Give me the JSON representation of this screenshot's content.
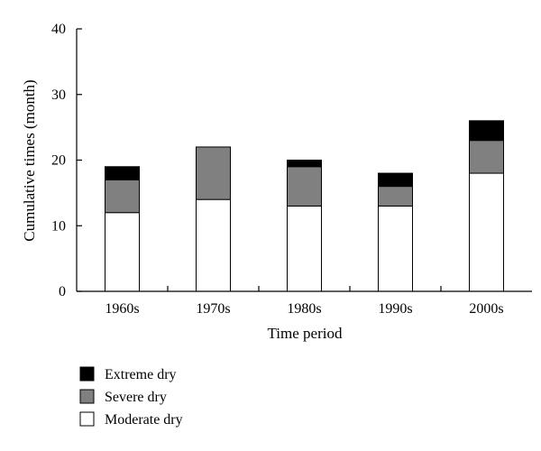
{
  "chart_data": {
    "type": "bar",
    "stacked": true,
    "title": "",
    "xlabel": "Time period",
    "ylabel": "Cumulative times (month)",
    "ylim": [
      0,
      40
    ],
    "yticks": [
      0,
      10,
      20,
      30,
      40
    ],
    "grid": false,
    "legend_position": "bottom-left",
    "categories": [
      "1960s",
      "1970s",
      "1980s",
      "1990s",
      "2000s"
    ],
    "series": [
      {
        "name": "Moderate dry",
        "color": "#ffffff",
        "values": [
          12,
          14,
          13,
          13,
          18
        ]
      },
      {
        "name": "Severe dry",
        "color": "#808080",
        "values": [
          5,
          8,
          6,
          3,
          5
        ]
      },
      {
        "name": "Extreme dry",
        "color": "#000000",
        "values": [
          2,
          0,
          1,
          2,
          3
        ]
      }
    ],
    "legend_order": [
      "Extreme dry",
      "Severe dry",
      "Moderate dry"
    ]
  }
}
